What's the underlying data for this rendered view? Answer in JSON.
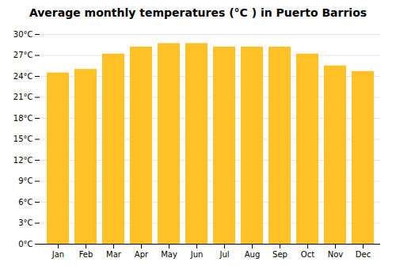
{
  "chart_data": {
    "type": "bar",
    "title": "Average monthly temperatures (°C ) in Puerto Barrios",
    "categories": [
      "Jan",
      "Feb",
      "Mar",
      "Apr",
      "May",
      "Jun",
      "Jul",
      "Aug",
      "Sep",
      "Oct",
      "Nov",
      "Dec"
    ],
    "values": [
      24.5,
      25.0,
      27.2,
      28.2,
      28.7,
      28.7,
      28.2,
      28.2,
      28.2,
      27.2,
      25.5,
      24.7
    ],
    "color": "#FFC125",
    "ylim": [
      0,
      30
    ],
    "yticks": [
      {
        "value": 0,
        "label": "0°C"
      },
      {
        "value": 3,
        "label": "3°C"
      },
      {
        "value": 6,
        "label": "6°C"
      },
      {
        "value": 9,
        "label": "9°C"
      },
      {
        "value": 12,
        "label": "12°C"
      },
      {
        "value": 15,
        "label": "15°C"
      },
      {
        "value": 18,
        "label": "18°C"
      },
      {
        "value": 21,
        "label": "21°C"
      },
      {
        "value": 24,
        "label": "24°C"
      },
      {
        "value": 27,
        "label": "27°C"
      },
      {
        "value": 30,
        "label": "30°C"
      }
    ],
    "grid": true
  }
}
